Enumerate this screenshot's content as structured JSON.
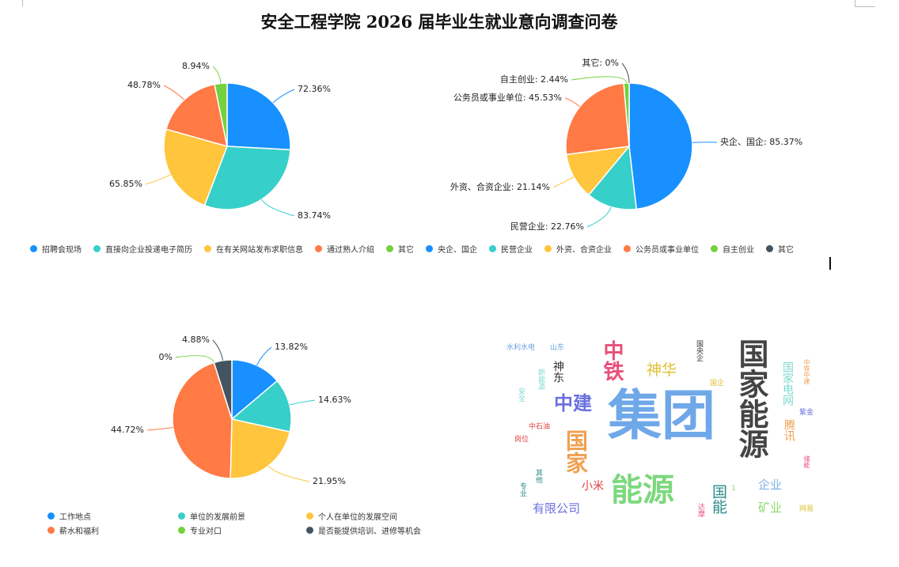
{
  "title": "安全工程学院 2026 届毕业生就业意向调查问卷",
  "colors": [
    "#1890ff",
    "#36cfc9",
    "#ffc53d",
    "#ff7a45",
    "#73d13d",
    "#435460"
  ],
  "legend_top": [
    "招聘会现场",
    "直接向企业投递电子简历",
    "在有关网站发布求职信息",
    "通过熟人介绍",
    "其它",
    "央企、国企",
    "民营企业",
    "外资、合资企业",
    "公务员或事业单位",
    "自主创业",
    "其它"
  ],
  "legend_top_colors": [
    "#1890ff",
    "#36cfc9",
    "#ffc53d",
    "#ff7a45",
    "#73d13d",
    "#1890ff",
    "#36cfc9",
    "#ffc53d",
    "#ff7a45",
    "#73d13d",
    "#435460"
  ],
  "chart_data": [
    {
      "type": "pie",
      "title": "",
      "label_format": "value",
      "categories": [
        "招聘会现场",
        "直接向企业投递电子简历",
        "在有关网站发布求职信息",
        "通过熟人介绍",
        "其它"
      ],
      "values": [
        72.36,
        83.74,
        65.85,
        48.78,
        8.94
      ],
      "unit": "%"
    },
    {
      "type": "pie",
      "title": "",
      "label_format": "name: value",
      "categories": [
        "央企、国企",
        "民营企业",
        "外资、合资企业",
        "公务员或事业单位",
        "自主创业",
        "其它"
      ],
      "values": [
        85.37,
        22.76,
        21.14,
        45.53,
        2.44,
        0
      ],
      "unit": "%"
    },
    {
      "type": "pie",
      "title": "",
      "label_format": "value",
      "categories": [
        "工作地点",
        "单位的发展前景",
        "个人在单位的发展空间",
        "薪水和福利",
        "专业对口",
        "是否能提供培训、进修等机会"
      ],
      "values": [
        13.82,
        14.63,
        21.95,
        44.72,
        0,
        4.88
      ],
      "unit": "%",
      "legend": "bottom"
    }
  ],
  "wordcloud": [
    {
      "text": "集团",
      "color": "#6fa8e8",
      "vertical": false
    },
    {
      "text": "国家能源",
      "color": "#444444",
      "vertical": true
    },
    {
      "text": "能源",
      "color": "#7dd87d",
      "vertical": false
    },
    {
      "text": "国家",
      "color": "#f0a050",
      "vertical": true
    },
    {
      "text": "中铁",
      "color": "#e8507a",
      "vertical": true
    },
    {
      "text": "中建",
      "color": "#6a70e0",
      "vertical": false
    },
    {
      "text": "神华",
      "color": "#e0c030",
      "vertical": false
    },
    {
      "text": "国能",
      "color": "#2a8a88",
      "vertical": true
    },
    {
      "text": "国家电网",
      "color": "#7fd8d0",
      "vertical": true
    },
    {
      "text": "有限公司",
      "color": "#6a70e0",
      "vertical": false
    },
    {
      "text": "腾讯",
      "color": "#f0a050",
      "vertical": true
    },
    {
      "text": "企业",
      "color": "#7fb0e8",
      "vertical": false
    },
    {
      "text": "矿业",
      "color": "#90d870",
      "vertical": false
    },
    {
      "text": "小米",
      "color": "#e04040",
      "vertical": false
    },
    {
      "text": "神东",
      "color": "#333333",
      "vertical": true
    },
    {
      "text": "水利水电",
      "color": "#6aa0e0",
      "vertical": false
    },
    {
      "text": "山东",
      "color": "#6aa0e0",
      "vertical": false
    },
    {
      "text": "新能源",
      "color": "#7fd8d0",
      "vertical": true
    },
    {
      "text": "安全",
      "color": "#7fd8d0",
      "vertical": true
    },
    {
      "text": "国央企",
      "color": "#333333",
      "vertical": true
    },
    {
      "text": "国企",
      "color": "#e0c030",
      "vertical": false
    },
    {
      "text": "中铁中建",
      "color": "#f0a050",
      "vertical": true
    },
    {
      "text": "紫金",
      "color": "#6a70e0",
      "vertical": false
    },
    {
      "text": "中石油",
      "color": "#e04040",
      "vertical": false
    },
    {
      "text": "岗位",
      "color": "#e04040",
      "vertical": false
    },
    {
      "text": "其他",
      "color": "#2a8a88",
      "vertical": true
    },
    {
      "text": "专业",
      "color": "#2a8a88",
      "vertical": true
    },
    {
      "text": "达摩",
      "color": "#e8507a",
      "vertical": true
    },
    {
      "text": "储能",
      "color": "#e8507a",
      "vertical": true
    },
    {
      "text": "网易",
      "color": "#e0c030",
      "vertical": false
    },
    {
      "text": "1",
      "color": "#90d870",
      "vertical": false
    }
  ]
}
